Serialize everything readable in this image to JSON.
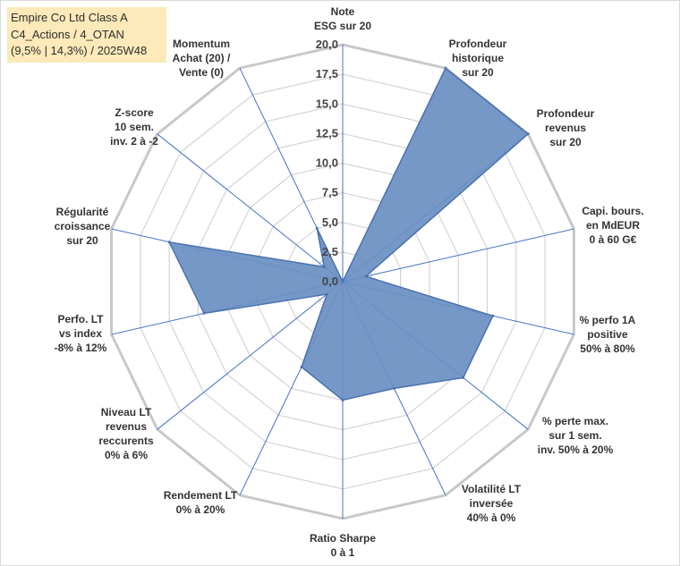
{
  "chart_data": {
    "type": "radar",
    "title": [
      "Empire Co Ltd Class A",
      "C4_Actions / 4_OTAN",
      "(9,5% | 14,3%) / 2025W48"
    ],
    "rlim": [
      0,
      20
    ],
    "tick_values": [
      0,
      2.5,
      5,
      7.5,
      10,
      12.5,
      15,
      17.5,
      20
    ],
    "tick_labels": [
      "0,0",
      "2,5",
      "5,0",
      "7,5",
      "10,0",
      "12,5",
      "15,0",
      "17,5",
      "20,0"
    ],
    "categories": [
      [
        "Note",
        "ESG sur 20"
      ],
      [
        "Profondeur",
        "historique",
        "sur 20"
      ],
      [
        "Profondeur",
        "revenus",
        "sur 20"
      ],
      [
        "Capi. bours.",
        "en MdEUR",
        "0 à 60 G€"
      ],
      [
        "% perfo 1A",
        "positive",
        "50% à 80%"
      ],
      [
        "% perte max.",
        "sur 1 sem.",
        "inv. 50% à 20%"
      ],
      [
        "Volatilité LT",
        "inversée",
        "40% à 0%"
      ],
      [
        "Ratio Sharpe",
        "0 à 1"
      ],
      [
        "Rendement LT",
        "0% à 20%"
      ],
      [
        "Niveau LT",
        "revenus",
        "reccurents",
        "0% à 6%"
      ],
      [
        "Perfo. LT",
        "vs index",
        "-8% à 12%"
      ],
      [
        "Régularité",
        "croissance",
        "sur 20"
      ],
      [
        "Z-score",
        "10 sem.",
        "inv. 2 à -2"
      ],
      [
        "Momentum",
        "Achat (20) /",
        "Vente (0)"
      ]
    ],
    "series": [
      {
        "name": "Empire Co Ltd Class A",
        "values": [
          0,
          20,
          20,
          2,
          13,
          13,
          10,
          10,
          8,
          1.7,
          12,
          15,
          2,
          5
        ]
      }
    ],
    "colors": {
      "fill": "#6a8fc2",
      "line": "#4a72b0",
      "grid": "#d4d4d4",
      "axis": "#4472c4"
    }
  }
}
